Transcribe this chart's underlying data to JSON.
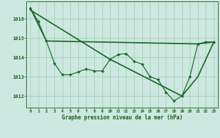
{
  "background_color": "#cce8e0",
  "grid_color": "#aaccbb",
  "line_color": "#1a6b2a",
  "title": "Graphe pression niveau de la mer (hPa)",
  "xlim": [
    -0.5,
    23.5
  ],
  "ylim": [
    1011.4,
    1016.9
  ],
  "yticks": [
    1012,
    1013,
    1014,
    1015,
    1016
  ],
  "xticks": [
    0,
    1,
    2,
    3,
    4,
    5,
    6,
    7,
    8,
    9,
    10,
    11,
    12,
    13,
    14,
    15,
    16,
    17,
    18,
    19,
    20,
    21,
    22,
    23
  ],
  "series": [
    {
      "x": [
        0,
        1,
        2,
        3,
        4,
        5,
        6,
        7,
        8,
        9,
        10,
        11,
        12,
        13,
        14,
        15,
        16,
        17,
        18,
        19,
        20,
        21,
        22,
        23
      ],
      "y": [
        1016.55,
        1015.85,
        1014.85,
        1013.7,
        1013.1,
        1013.1,
        1013.25,
        1013.4,
        1013.3,
        1013.3,
        1013.9,
        1014.15,
        1014.2,
        1013.8,
        1013.65,
        1013.0,
        1012.85,
        1012.2,
        1011.75,
        1012.0,
        1013.0,
        1014.7,
        1014.8,
        1014.8
      ],
      "marker": "D",
      "markersize": 2.0,
      "linewidth": 0.9
    },
    {
      "x": [
        0,
        2,
        21,
        23
      ],
      "y": [
        1016.55,
        1014.85,
        1014.7,
        1014.8
      ],
      "marker": null,
      "markersize": 0,
      "linewidth": 1.3
    },
    {
      "x": [
        0,
        10,
        19,
        21,
        23
      ],
      "y": [
        1016.45,
        1013.9,
        1012.0,
        1013.0,
        1014.8
      ],
      "marker": null,
      "markersize": 0,
      "linewidth": 1.3
    }
  ]
}
